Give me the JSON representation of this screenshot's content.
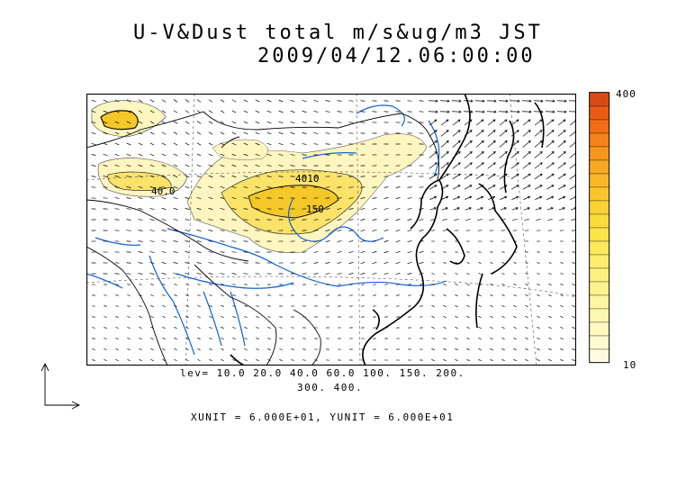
{
  "title": {
    "line1": "U-V&Dust total m/s&ug/m3 JST",
    "line2": "2009/04/12.06:00:00"
  },
  "colorbar": {
    "max_label": "400",
    "min_label": "10",
    "colors": [
      "#d84a14",
      "#ea5c14",
      "#f26d14",
      "#f5821a",
      "#f7961e",
      "#f8a722",
      "#f9b726",
      "#fac52c",
      "#fbd233",
      "#fcdc3b",
      "#fde347",
      "#fde959",
      "#feed6c",
      "#fef07e",
      "#fef38f",
      "#fef5a0",
      "#fef7b0",
      "#fef9c0",
      "#fefbd0",
      "#fefce0"
    ]
  },
  "contours": {
    "levels_line1": "lev= 10.0 20.0 40.0 60.0 100. 150. 200.",
    "levels_line2": "300. 400.",
    "plot_labels": [
      "4010",
      "150",
      "40.0"
    ]
  },
  "units_text": "XUNIT = 6.000E+01, YUNIT = 6.000E+01",
  "style": {
    "coast_color": "#000000",
    "river_color": "#1560d8",
    "dust_light": "#fdf6c0",
    "dust_mid": "#fbe36a",
    "dust_high": "#f4c828"
  }
}
